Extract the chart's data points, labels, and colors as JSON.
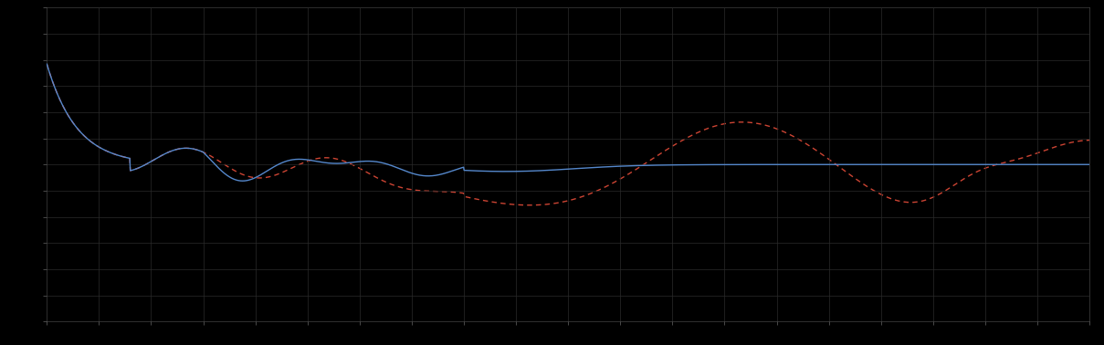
{
  "background_color": "#000000",
  "plot_bg_color": "#000000",
  "grid_color": "#2a2a2a",
  "line1_color": "#5588cc",
  "line2_color": "#cc4433",
  "line1_style": "-",
  "line2_style": "--",
  "line_width": 1.0,
  "figsize": [
    12.09,
    3.78
  ],
  "dpi": 100,
  "xlim": [
    0,
    100
  ],
  "ylim": [
    0,
    10
  ],
  "n_xticks": 21,
  "n_yticks": 13,
  "tick_color": "#666666",
  "spine_color": "#444444"
}
